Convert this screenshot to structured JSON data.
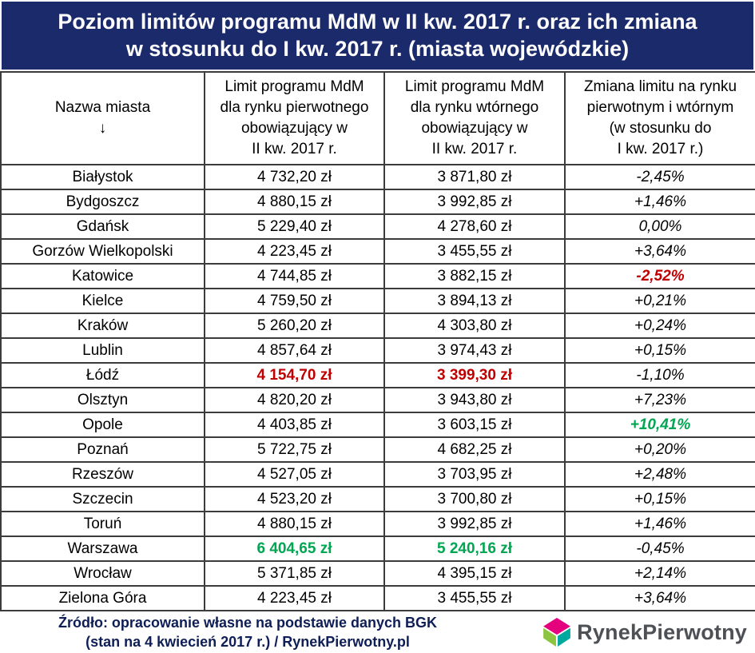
{
  "colors": {
    "header_bg": "#1b2a6b",
    "negative_highlight": "#c00000",
    "positive_highlight": "#00a651",
    "footer_text": "#0e1e56",
    "logo_pink": "#e5007d",
    "logo_green": "#8bc53f",
    "logo_teal": "#00a99d"
  },
  "title": {
    "line1": "Poziom limitów programu MdM w II kw. 2017 r. oraz ich zmiana",
    "line2": "w stosunku do I kw. 2017 r. (miasta wojewódzkie)"
  },
  "table": {
    "header_arrow": "↓",
    "headers": [
      {
        "name": "col-header-city",
        "lines": [
          "Nazwa miasta",
          "↓"
        ]
      },
      {
        "name": "col-header-primary-limit",
        "lines": [
          "Limit programu MdM",
          "dla rynku pierwotnego",
          "obowiązujący w",
          "II kw. 2017 r."
        ]
      },
      {
        "name": "col-header-secondary-limit",
        "lines": [
          "Limit programu MdM",
          "dla rynku wtórnego",
          "obowiązujący w",
          "II kw. 2017 r."
        ]
      },
      {
        "name": "col-header-change",
        "lines": [
          "Zmiana limitu na rynku",
          "pierwotnym i wtórnym",
          "(w stosunku do",
          "I kw. 2017 r.)"
        ]
      }
    ]
  },
  "chart_data": {
    "type": "table",
    "title": "Poziom limitów programu MdM w II kw. 2017 r. oraz ich zmiana w stosunku do I kw. 2017 r. (miasta wojewódzkie)",
    "columns": [
      "Nazwa miasta",
      "Limit programu MdM dla rynku pierwotnego obowiązujący w II kw. 2017 r.",
      "Limit programu MdM dla rynku wtórnego obowiązujący w II kw. 2017 r.",
      "Zmiana limitu na rynku pierwotnym i wtórnym (w stosunku do I kw. 2017 r.)"
    ],
    "rows": [
      {
        "city": "Białystok",
        "primary": "4 732,20 zł",
        "secondary": "3 871,80 zł",
        "change": "-2,45%"
      },
      {
        "city": "Bydgoszcz",
        "primary": "4 880,15 zł",
        "secondary": "3 992,85 zł",
        "change": "+1,46%"
      },
      {
        "city": "Gdańsk",
        "primary": "5 229,40 zł",
        "secondary": "4 278,60 zł",
        "change": "0,00%"
      },
      {
        "city": "Gorzów Wielkopolski",
        "primary": "4 223,45 zł",
        "secondary": "3 455,55 zł",
        "change": "+3,64%"
      },
      {
        "city": "Katowice",
        "primary": "4 744,85 zł",
        "secondary": "3 882,15 zł",
        "change": "-2,52%",
        "change_style": "red"
      },
      {
        "city": "Kielce",
        "primary": "4 759,50 zł",
        "secondary": "3 894,13 zł",
        "change": "+0,21%"
      },
      {
        "city": "Kraków",
        "primary": "5 260,20 zł",
        "secondary": "4 303,80 zł",
        "change": "+0,24%"
      },
      {
        "city": "Lublin",
        "primary": "4 857,64 zł",
        "secondary": "3 974,43 zł",
        "change": "+0,15%"
      },
      {
        "city": "Łódź",
        "primary": "4 154,70 zł",
        "secondary": "3 399,30 zł",
        "change": "-1,10%",
        "primary_style": "red",
        "secondary_style": "red"
      },
      {
        "city": "Olsztyn",
        "primary": "4 820,20 zł",
        "secondary": "3 943,80 zł",
        "change": "+7,23%"
      },
      {
        "city": "Opole",
        "primary": "4 403,85 zł",
        "secondary": "3 603,15 zł",
        "change": "+10,41%",
        "change_style": "green"
      },
      {
        "city": "Poznań",
        "primary": "5 722,75 zł",
        "secondary": "4 682,25 zł",
        "change": "+0,20%"
      },
      {
        "city": "Rzeszów",
        "primary": "4 527,05 zł",
        "secondary": "3 703,95 zł",
        "change": "+2,48%"
      },
      {
        "city": "Szczecin",
        "primary": "4 523,20 zł",
        "secondary": "3 700,80 zł",
        "change": "+0,15%"
      },
      {
        "city": "Toruń",
        "primary": "4 880,15 zł",
        "secondary": "3 992,85 zł",
        "change": "+1,46%"
      },
      {
        "city": "Warszawa",
        "primary": "6 404,65 zł",
        "secondary": "5 240,16 zł",
        "change": "-0,45%",
        "primary_style": "green",
        "secondary_style": "green"
      },
      {
        "city": "Wrocław",
        "primary": "5 371,85 zł",
        "secondary": "4 395,15 zł",
        "change": "+2,14%"
      },
      {
        "city": "Zielona Góra",
        "primary": "4 223,45 zł",
        "secondary": "3 455,55 zł",
        "change": "+3,64%"
      }
    ]
  },
  "footer": {
    "source_line1": "Źródło: opracowanie własne na podstawie danych BGK",
    "source_line2": "(stan na 4 kwiecień 2017 r.) / RynekPierwotny.pl",
    "logo_text": "RynekPierwotny"
  }
}
